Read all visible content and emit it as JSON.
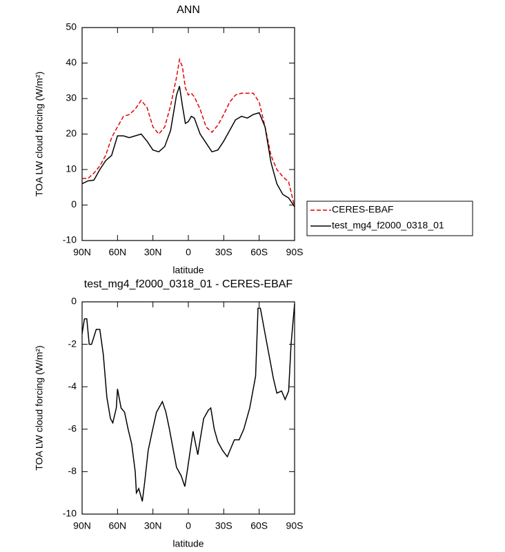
{
  "chart_data": [
    {
      "type": "line",
      "title": "ANN",
      "xlabel": "latitude",
      "ylabel": "TOA LW cloud forcing (W/m²)",
      "x": [
        90,
        85,
        80,
        75,
        70,
        65,
        60,
        55,
        50,
        45,
        40,
        35,
        30,
        25,
        20,
        15,
        10,
        7.5,
        5,
        2.5,
        0,
        -2.5,
        -5,
        -10,
        -15,
        -20,
        -25,
        -30,
        -35,
        -40,
        -45,
        -50,
        -55,
        -60,
        -65,
        -70,
        -75,
        -80,
        -85,
        -90
      ],
      "series": [
        {
          "name": "CERES-EBAF",
          "color": "#e00000",
          "dashed": true,
          "values": [
            7.5,
            7.5,
            9,
            11,
            14,
            19,
            22,
            25,
            25.5,
            27,
            29.5,
            27.5,
            22,
            20,
            22,
            28,
            36,
            41,
            39,
            33,
            31,
            31.5,
            30.5,
            27,
            22,
            20.5,
            22.5,
            25.5,
            29,
            31,
            31.5,
            31.5,
            31.5,
            29,
            22,
            14,
            10,
            8,
            6.5,
            -0.5
          ]
        },
        {
          "name": "test_mg4_f2000_0318_01",
          "color": "#000000",
          "dashed": false,
          "values": [
            6,
            6.8,
            7,
            10,
            12.5,
            14,
            19.5,
            19.5,
            19,
            19.5,
            20,
            18,
            15.5,
            15,
            16.5,
            21,
            31,
            33.5,
            28,
            23,
            23.5,
            25,
            24.5,
            20,
            17.5,
            15,
            15.5,
            18,
            21,
            24,
            25,
            24.5,
            25.5,
            26,
            22,
            12,
            6,
            3,
            2,
            -0.5
          ]
        }
      ],
      "xlim": [
        90,
        -90
      ],
      "xticks": [
        {
          "value": 90,
          "label": "90N"
        },
        {
          "value": 60,
          "label": "60N"
        },
        {
          "value": 30,
          "label": "30N"
        },
        0,
        {
          "value": -30,
          "label": "30S"
        },
        {
          "value": -60,
          "label": "60S"
        },
        {
          "value": -90,
          "label": "90S"
        }
      ],
      "ylim": [
        -10,
        50
      ],
      "yticks": [
        -10,
        0,
        10,
        20,
        30,
        40,
        50
      ],
      "legend": "right"
    },
    {
      "type": "line",
      "title": "test_mg4_f2000_0318_01 - CERES-EBAF",
      "xlabel": "latitude",
      "ylabel": "TOA LW cloud forcing (W/m²)",
      "x": [
        90,
        88,
        86,
        84,
        82,
        78,
        75,
        72,
        69,
        66,
        64,
        61,
        60,
        57,
        54,
        51,
        48,
        45,
        44,
        42,
        39,
        37,
        34,
        31,
        27,
        22,
        19,
        16,
        10,
        6,
        3,
        1,
        -4,
        -8,
        -10,
        -13,
        -17,
        -19,
        -22,
        -25,
        -29,
        -33,
        -39,
        -43,
        -47,
        -52,
        -57,
        -59,
        -61,
        -65,
        -70,
        -72,
        -75,
        -79,
        -82,
        -85,
        -87,
        -90
      ],
      "series": [
        {
          "color": "#000000",
          "dashed": false,
          "values": [
            -1.5,
            -0.8,
            -0.8,
            -2,
            -2,
            -1.3,
            -1.3,
            -2.5,
            -4.5,
            -5.5,
            -5.7,
            -5,
            -4.1,
            -5,
            -5.2,
            -6,
            -6.7,
            -8,
            -9,
            -8.8,
            -9.4,
            -8.5,
            -7,
            -6.2,
            -5.2,
            -4.7,
            -5.2,
            -6,
            -7.8,
            -8.2,
            -8.7,
            -8,
            -6.1,
            -7.2,
            -6.5,
            -5.5,
            -5.1,
            -5,
            -6,
            -6.6,
            -7,
            -7.3,
            -6.5,
            -6.5,
            -6,
            -5,
            -3.5,
            -0.3,
            -0.3,
            -1.5,
            -3,
            -3.6,
            -4.3,
            -4.2,
            -4.6,
            -4.2,
            -2,
            -0.1
          ]
        }
      ],
      "xlim": [
        90,
        -90
      ],
      "xticks": [
        {
          "value": 90,
          "label": "90N"
        },
        {
          "value": 60,
          "label": "60N"
        },
        {
          "value": 30,
          "label": "30N"
        },
        0,
        {
          "value": -30,
          "label": "30S"
        },
        {
          "value": -60,
          "label": "60S"
        },
        {
          "value": -90,
          "label": "90S"
        }
      ],
      "ylim": [
        -10,
        0
      ],
      "yticks": [
        -10,
        -8,
        -6,
        -4,
        -2,
        0
      ]
    }
  ]
}
